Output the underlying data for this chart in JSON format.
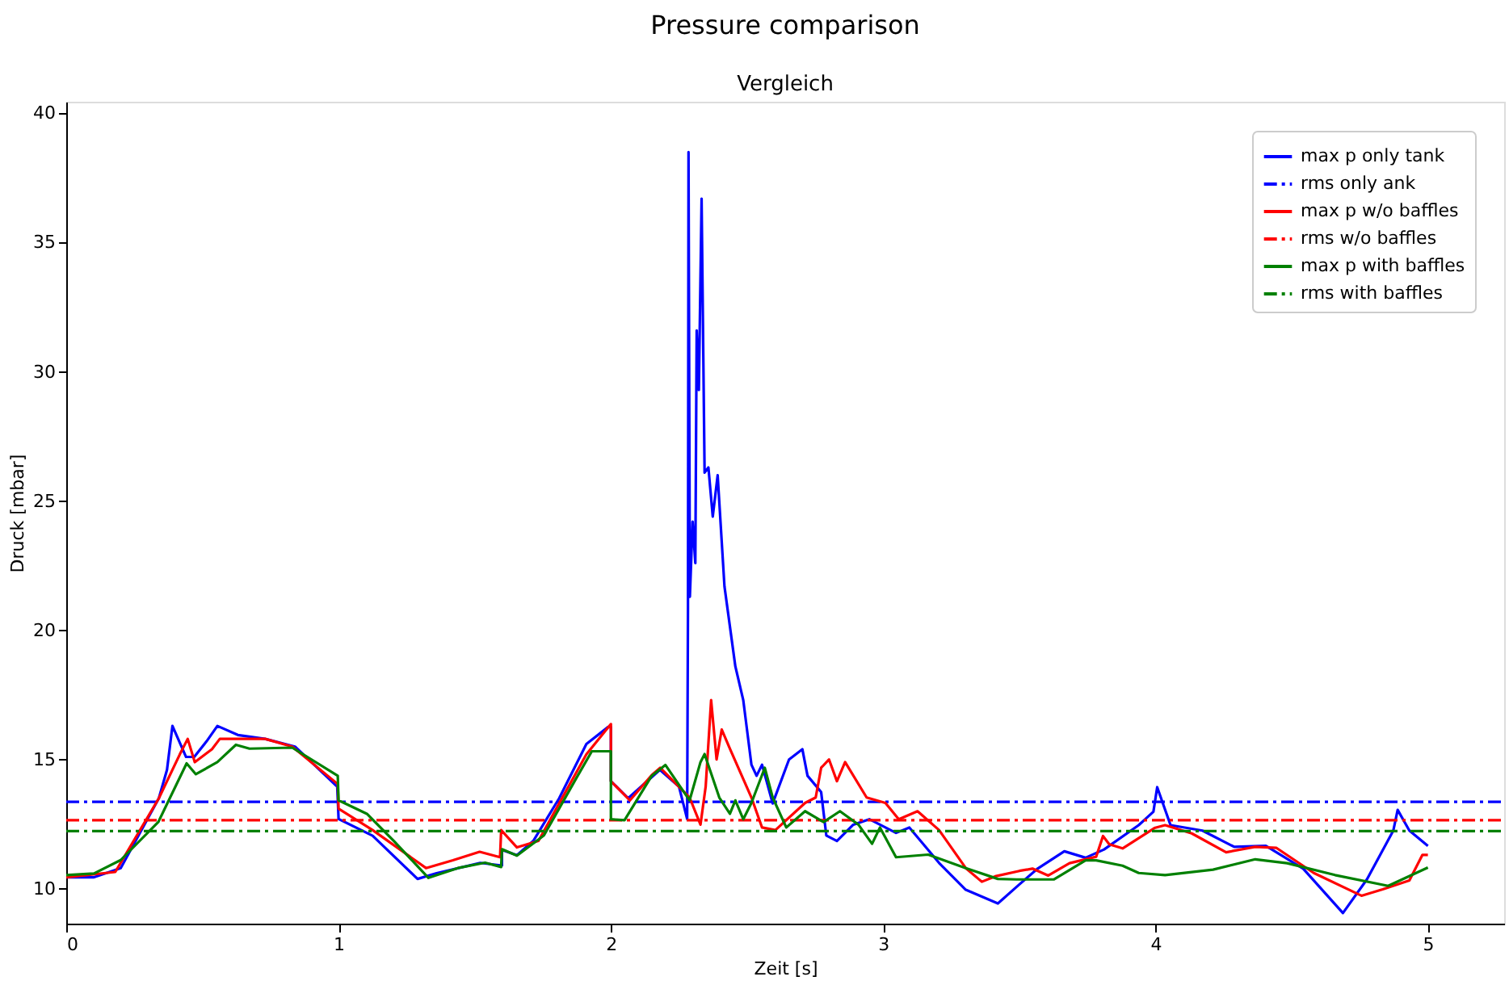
{
  "chart_data": {
    "type": "line",
    "title": "Pressure comparison",
    "subtitle": "Vergleich",
    "xlabel": "Zeit [s]",
    "ylabel": "Druck [mbar]",
    "xlim": [
      0,
      5.28
    ],
    "ylim": [
      8.65,
      40.45
    ],
    "xticks": [
      0,
      1,
      2,
      3,
      4,
      5
    ],
    "yticks": [
      10,
      15,
      20,
      25,
      30,
      35,
      40
    ],
    "grid": false,
    "legend": "top right",
    "marker": "none",
    "series": [
      {
        "name": "max p only tank",
        "color": "#0000ff",
        "line_style": "solid",
        "x": [
          0,
          0.1,
          0.2,
          0.34,
          0.37,
          0.39,
          0.44,
          0.47,
          0.515,
          0.555,
          0.63,
          0.73,
          0.84,
          0.995,
          1.0,
          1.125,
          1.29,
          1.36,
          1.52,
          1.6,
          1.6,
          1.655,
          1.715,
          1.81,
          1.91,
          1.99,
          2.0,
          2.0,
          2.063,
          2.18,
          2.25,
          2.28,
          2.283,
          2.285,
          2.29,
          2.3,
          2.31,
          2.315,
          2.323,
          2.333,
          2.344,
          2.358,
          2.374,
          2.392,
          2.417,
          2.457,
          2.486,
          2.516,
          2.535,
          2.555,
          2.594,
          2.654,
          2.703,
          2.722,
          2.772,
          2.791,
          2.83,
          2.89,
          2.949,
          3.047,
          3.096,
          3.205,
          3.303,
          3.421,
          3.5,
          3.567,
          3.665,
          3.743,
          3.811,
          3.938,
          3.992,
          4.006,
          4.055,
          4.172,
          4.289,
          4.405,
          4.542,
          4.688,
          4.776,
          4.873,
          4.889,
          4.932,
          5.0
        ],
        "values": [
          10.44,
          10.44,
          10.8,
          13.5,
          14.6,
          16.3,
          15.1,
          15.1,
          15.7,
          16.3,
          15.95,
          15.8,
          15.5,
          13.95,
          12.7,
          12.05,
          10.38,
          10.6,
          11.0,
          10.9,
          11.5,
          11.3,
          11.85,
          13.5,
          15.6,
          16.26,
          16.26,
          14.16,
          13.5,
          14.6,
          13.95,
          12.7,
          20.9,
          38.5,
          21.3,
          24.2,
          22.6,
          31.6,
          29.3,
          36.7,
          26.1,
          26.3,
          24.4,
          26.0,
          21.7,
          18.6,
          17.3,
          14.8,
          14.37,
          14.8,
          13.3,
          15.0,
          15.4,
          14.37,
          13.74,
          12.06,
          11.85,
          12.48,
          12.69,
          12.16,
          12.37,
          11.0,
          9.96,
          9.43,
          10.17,
          10.78,
          11.45,
          11.2,
          11.52,
          12.46,
          12.98,
          13.93,
          12.46,
          12.25,
          11.62,
          11.66,
          10.78,
          9.06,
          10.36,
          12.25,
          13.05,
          12.25,
          11.66
        ]
      },
      {
        "name": "rms only ank",
        "color": "#0000ff",
        "line_style": "dashdot",
        "x": [
          0,
          5.28
        ],
        "values": [
          13.36,
          13.36
        ]
      },
      {
        "name": "max p w/o baffles",
        "color": "#ff0000",
        "line_style": "solid",
        "x": [
          0,
          0.18,
          0.34,
          0.417,
          0.446,
          0.472,
          0.535,
          0.564,
          0.73,
          0.83,
          0.997,
          1.0,
          1.125,
          1.321,
          1.42,
          1.518,
          1.593,
          1.597,
          1.655,
          1.734,
          1.81,
          1.91,
          2.0,
          2.0,
          2.07,
          2.15,
          2.181,
          2.289,
          2.329,
          2.348,
          2.368,
          2.388,
          2.407,
          2.437,
          2.516,
          2.555,
          2.604,
          2.713,
          2.752,
          2.772,
          2.801,
          2.83,
          2.86,
          2.939,
          3.008,
          3.057,
          3.126,
          3.205,
          3.303,
          3.362,
          3.411,
          3.5,
          3.548,
          3.606,
          3.684,
          3.782,
          3.807,
          3.83,
          3.879,
          3.996,
          4.035,
          4.133,
          4.259,
          4.366,
          4.444,
          4.581,
          4.756,
          4.834,
          4.932,
          4.98,
          5.0
        ],
        "values": [
          10.44,
          10.65,
          13.5,
          15.2,
          15.8,
          14.9,
          15.4,
          15.8,
          15.8,
          15.5,
          14.05,
          13.1,
          12.27,
          10.8,
          11.1,
          11.43,
          11.22,
          12.27,
          11.6,
          11.85,
          13.3,
          15.2,
          16.37,
          14.16,
          13.42,
          14.4,
          14.68,
          13.53,
          12.48,
          13.95,
          17.3,
          15.0,
          16.16,
          15.42,
          13.53,
          12.37,
          12.27,
          13.32,
          13.53,
          14.68,
          15.0,
          14.16,
          14.9,
          13.53,
          13.32,
          12.69,
          13.0,
          12.27,
          10.8,
          10.27,
          10.48,
          10.69,
          10.78,
          10.51,
          10.99,
          11.24,
          12.04,
          11.72,
          11.56,
          12.35,
          12.46,
          12.14,
          11.41,
          11.62,
          11.58,
          10.61,
          9.73,
          9.98,
          10.32,
          11.31,
          11.31
        ]
      },
      {
        "name": "rms w/o baffles",
        "color": "#ff0000",
        "line_style": "dashdot",
        "x": [
          0,
          5.28
        ],
        "values": [
          12.65,
          12.65
        ]
      },
      {
        "name": "max p with baffles",
        "color": "#008000",
        "line_style": "solid",
        "x": [
          0,
          0.102,
          0.2,
          0.338,
          0.442,
          0.476,
          0.555,
          0.623,
          0.673,
          0.83,
          0.997,
          1.0,
          1.104,
          1.203,
          1.33,
          1.438,
          1.538,
          1.597,
          1.6,
          1.655,
          1.754,
          1.872,
          1.93,
          2.0,
          2.0,
          2.05,
          2.15,
          2.2,
          2.289,
          2.329,
          2.344,
          2.398,
          2.437,
          2.457,
          2.486,
          2.516,
          2.565,
          2.594,
          2.644,
          2.713,
          2.781,
          2.841,
          2.909,
          2.959,
          2.988,
          3.047,
          3.165,
          3.303,
          3.421,
          3.489,
          3.626,
          3.743,
          3.782,
          3.879,
          3.938,
          4.035,
          4.211,
          4.366,
          4.483,
          4.659,
          4.854,
          5.0
        ],
        "values": [
          10.53,
          10.59,
          11.11,
          12.58,
          14.85,
          14.43,
          14.9,
          15.57,
          15.42,
          15.46,
          14.37,
          13.42,
          12.9,
          11.85,
          10.42,
          10.8,
          11.01,
          10.84,
          11.53,
          11.28,
          12.06,
          14.26,
          15.32,
          15.32,
          12.69,
          12.65,
          14.37,
          14.79,
          13.42,
          14.9,
          15.21,
          13.53,
          12.9,
          13.42,
          12.69,
          13.32,
          14.68,
          13.53,
          12.37,
          13.0,
          12.58,
          13.0,
          12.48,
          11.74,
          12.37,
          11.22,
          11.32,
          10.8,
          10.38,
          10.36,
          10.36,
          11.1,
          11.1,
          10.89,
          10.61,
          10.53,
          10.74,
          11.14,
          10.99,
          10.53,
          10.11,
          10.82
        ]
      },
      {
        "name": "rms with baffles",
        "color": "#008000",
        "line_style": "dashdot",
        "x": [
          0,
          5.28
        ],
        "values": [
          12.23,
          12.23
        ]
      }
    ]
  }
}
